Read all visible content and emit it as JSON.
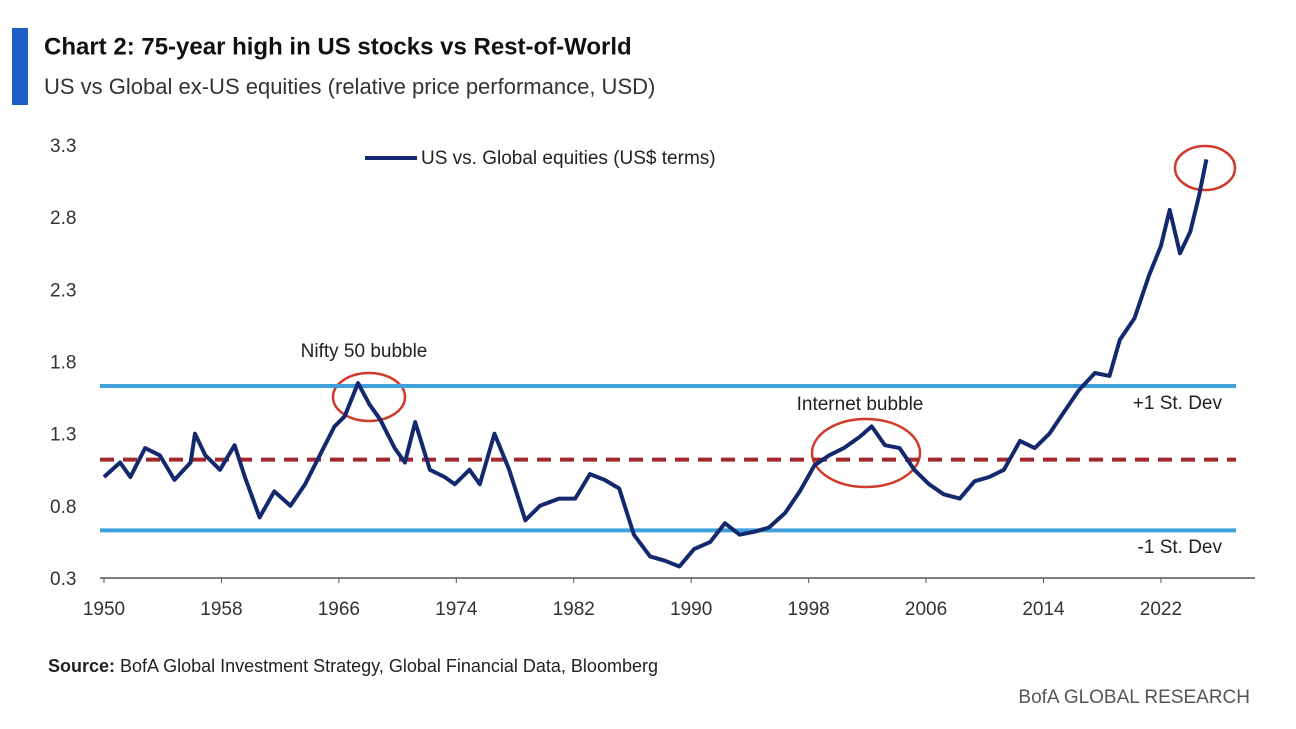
{
  "chart_data": {
    "type": "line",
    "title": "Chart 2: 75-year high in US stocks vs Rest-of-World",
    "subtitle": "US vs Global ex-US equities (relative price performance, USD)",
    "x": [
      1950,
      1951.1,
      1951.8,
      1952.8,
      1953.8,
      1954.8,
      1955.9,
      1956.2,
      1956.9,
      1957.9,
      1958.9,
      1959.6,
      1960.6,
      1961.6,
      1962.7,
      1963.7,
      1964.7,
      1965.7,
      1966.4,
      1967.3,
      1968.1,
      1968.8,
      1969.8,
      1970.5,
      1971.2,
      1972.2,
      1973.2,
      1973.9,
      1974.9,
      1975.6,
      1976.6,
      1977.6,
      1978.7,
      1979.7,
      1981,
      1982.1,
      1983.1,
      1984.1,
      1985.1,
      1986.1,
      1987.2,
      1988.2,
      1989.2,
      1990.2,
      1991.3,
      1992.3,
      1993.3,
      1994.3,
      1995.3,
      1996.4,
      1997.4,
      1998.4,
      1999.4,
      2000.4,
      2001.5,
      2002.3,
      2003.2,
      2004.2,
      2005.2,
      2006.2,
      2007.2,
      2008.3,
      2009.3,
      2010.3,
      2011.3,
      2012.4,
      2013.4,
      2014.4,
      2015.4,
      2016.4,
      2017.5,
      2018.5,
      2019.2,
      2020.2,
      2021.2,
      2022,
      2022.6,
      2023.3,
      2024,
      2024.6,
      2025.1
    ],
    "series": [
      {
        "name": "US vs. Global equities (US$ terms)",
        "color": "#14286e",
        "values": [
          1.0,
          1.1,
          1.0,
          1.2,
          1.15,
          0.98,
          1.1,
          1.3,
          1.15,
          1.05,
          1.22,
          1.0,
          0.72,
          0.9,
          0.8,
          0.95,
          1.15,
          1.35,
          1.42,
          1.65,
          1.5,
          1.4,
          1.2,
          1.1,
          1.38,
          1.05,
          1.0,
          0.95,
          1.05,
          0.95,
          1.3,
          1.05,
          0.7,
          0.8,
          0.85,
          0.85,
          1.02,
          0.98,
          0.92,
          0.6,
          0.45,
          0.42,
          0.38,
          0.5,
          0.55,
          0.68,
          0.6,
          0.62,
          0.65,
          0.75,
          0.9,
          1.08,
          1.15,
          1.2,
          1.28,
          1.35,
          1.22,
          1.2,
          1.05,
          0.95,
          0.88,
          0.85,
          0.97,
          1.0,
          1.05,
          1.25,
          1.2,
          1.3,
          1.45,
          1.6,
          1.72,
          1.7,
          1.95,
          2.1,
          2.4,
          2.6,
          2.85,
          2.55,
          2.7,
          2.95,
          3.2
        ]
      }
    ],
    "xlim": [
      1950,
      2028
    ],
    "xticks": [
      1950,
      1958,
      1966,
      1974,
      1982,
      1990,
      1998,
      2006,
      2014,
      2022
    ],
    "ylim": [
      0.3,
      3.3
    ],
    "yticks": [
      0.3,
      0.8,
      1.3,
      1.8,
      2.3,
      2.8,
      3.3
    ],
    "reference_lines": [
      {
        "label": "+1 St. Dev",
        "value": 1.63,
        "color": "#3fa0dc",
        "style": "solid"
      },
      {
        "value": 1.12,
        "color": "#a3282e",
        "style": "dashed"
      },
      {
        "label": "-1 St. Dev",
        "value": 0.63,
        "color": "#3fa0dc",
        "style": "solid"
      }
    ],
    "annotations": [
      "Nifty 50 bubble",
      "Internet bubble"
    ],
    "source": {
      "label": "Source:",
      "text": "BofA Global Investment Strategy, Global Financial Data, Bloomberg"
    },
    "footer": "BofA GLOBAL RESEARCH",
    "grid": false
  }
}
